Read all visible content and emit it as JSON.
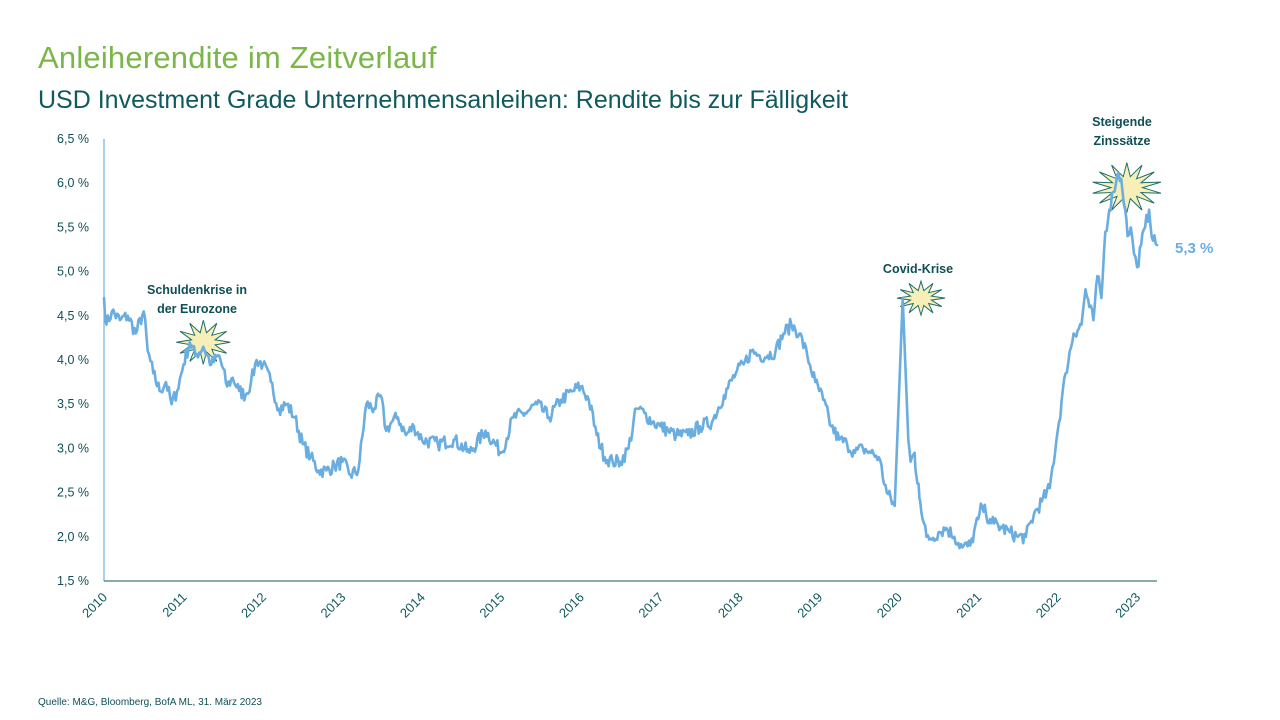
{
  "title": "Anleiherendite  im Zeitverlauf",
  "subtitle": "USD Investment Grade Unternehmensanleihen: Rendite bis zur Fälligkeit",
  "source": "Quelle: M&G, Bloomberg, BofA ML, 31. März 2023",
  "colors": {
    "title": "#7ab648",
    "subtitle": "#0f5a5e",
    "line": "#6aade0",
    "burst_fill": "#f8efb8",
    "burst_stroke": "#1f6e6a"
  },
  "chart_data": {
    "type": "line",
    "title": "USD Investment Grade Unternehmensanleihen: Rendite bis zur Fälligkeit",
    "xlabel": "",
    "ylabel": "",
    "xlim": [
      2010.0,
      2023.25
    ],
    "ylim": [
      1.5,
      6.5
    ],
    "y_ticks": [
      1.5,
      2.0,
      2.5,
      3.0,
      3.5,
      4.0,
      4.5,
      5.0,
      5.5,
      6.0,
      6.5
    ],
    "y_tick_labels": [
      "1,5 %",
      "2,0 %",
      "2,5 %",
      "3,0 %",
      "3,5 %",
      "4,0 %",
      "4,5 %",
      "5,0 %",
      "5,5 %",
      "6,0 %",
      "6,5 %"
    ],
    "x_ticks": [
      2010,
      2011,
      2012,
      2013,
      2014,
      2015,
      2016,
      2017,
      2018,
      2019,
      2020,
      2021,
      2022,
      2023
    ],
    "x_tick_labels": [
      "2010",
      "2011",
      "2012",
      "2013",
      "2014",
      "2015",
      "2016",
      "2017",
      "2018",
      "2019",
      "2020",
      "2021",
      "2022",
      "2023"
    ],
    "series": [
      {
        "name": "Rendite bis zur Fälligkeit",
        "x": [
          2010.0,
          2010.03,
          2010.1,
          2010.2,
          2010.3,
          2010.4,
          2010.5,
          2010.55,
          2010.62,
          2010.7,
          2010.78,
          2010.85,
          2010.92,
          2011.0,
          2011.08,
          2011.15,
          2011.25,
          2011.35,
          2011.45,
          2011.55,
          2011.62,
          2011.7,
          2011.78,
          2011.85,
          2011.92,
          2012.0,
          2012.1,
          2012.2,
          2012.3,
          2012.4,
          2012.5,
          2012.6,
          2012.7,
          2012.8,
          2012.9,
          2013.0,
          2013.1,
          2013.2,
          2013.3,
          2013.4,
          2013.48,
          2013.55,
          2013.62,
          2013.7,
          2013.8,
          2013.9,
          2014.0,
          2014.2,
          2014.4,
          2014.6,
          2014.8,
          2015.0,
          2015.15,
          2015.3,
          2015.45,
          2015.6,
          2015.75,
          2015.9,
          2016.0,
          2016.1,
          2016.2,
          2016.3,
          2016.4,
          2016.5,
          2016.6,
          2016.7,
          2016.8,
          2016.9,
          2017.0,
          2017.1,
          2017.2,
          2017.35,
          2017.5,
          2017.65,
          2017.8,
          2017.95,
          2018.05,
          2018.15,
          2018.25,
          2018.35,
          2018.45,
          2018.55,
          2018.65,
          2018.75,
          2018.85,
          2018.95,
          2019.05,
          2019.15,
          2019.25,
          2019.35,
          2019.45,
          2019.55,
          2019.65,
          2019.75,
          2019.85,
          2019.95,
          2020.05,
          2020.12,
          2020.15,
          2020.2,
          2020.22,
          2020.25,
          2020.27,
          2020.3,
          2020.35,
          2020.4,
          2020.5,
          2020.6,
          2020.7,
          2020.8,
          2020.9,
          2021.0,
          2021.05,
          2021.1,
          2021.15,
          2021.2,
          2021.3,
          2021.4,
          2021.5,
          2021.6,
          2021.7,
          2021.8,
          2021.9,
          2022.0,
          2022.1,
          2022.2,
          2022.3,
          2022.35,
          2022.4,
          2022.45,
          2022.5,
          2022.55,
          2022.6,
          2022.65,
          2022.7,
          2022.75,
          2022.8,
          2022.85,
          2022.88,
          2022.92,
          2022.96,
          2023.0,
          2023.05,
          2023.1,
          2023.15,
          2023.2,
          2023.25
        ],
        "values": [
          4.7,
          4.4,
          4.55,
          4.45,
          4.5,
          4.3,
          4.55,
          4.1,
          3.85,
          3.65,
          3.75,
          3.5,
          3.65,
          3.95,
          4.2,
          4.05,
          4.15,
          3.95,
          4.05,
          3.7,
          3.8,
          3.65,
          3.6,
          3.75,
          4.0,
          3.95,
          3.75,
          3.45,
          3.5,
          3.35,
          3.05,
          2.9,
          2.75,
          2.75,
          2.8,
          2.85,
          2.7,
          2.75,
          3.5,
          3.45,
          3.6,
          3.2,
          3.3,
          3.35,
          3.15,
          3.25,
          3.1,
          3.05,
          3.1,
          2.95,
          3.2,
          2.95,
          3.35,
          3.4,
          3.5,
          3.35,
          3.55,
          3.65,
          3.7,
          3.55,
          3.15,
          2.9,
          2.85,
          2.85,
          3.0,
          3.45,
          3.4,
          3.3,
          3.25,
          3.2,
          3.15,
          3.15,
          3.25,
          3.3,
          3.6,
          3.85,
          3.95,
          4.1,
          4.05,
          4.05,
          4.1,
          4.3,
          4.4,
          4.3,
          4.05,
          3.75,
          3.55,
          3.25,
          3.1,
          3.05,
          2.95,
          3.0,
          2.95,
          2.9,
          2.5,
          2.35,
          4.7,
          3.1,
          2.85,
          2.95,
          2.7,
          2.6,
          2.4,
          2.2,
          2.0,
          1.98,
          2.05,
          2.1,
          2.0,
          1.88,
          1.9,
          2.2,
          2.35,
          2.25,
          2.2,
          2.15,
          2.1,
          2.05,
          2.0,
          2.0,
          2.25,
          2.4,
          2.55,
          3.2,
          3.85,
          4.3,
          4.4,
          4.8,
          4.6,
          4.45,
          4.95,
          4.7,
          5.45,
          5.7,
          5.9,
          6.1,
          6.05,
          5.7,
          5.4,
          5.5,
          5.2,
          5.05,
          5.3,
          5.5,
          5.7,
          5.35,
          5.3
        ],
        "end_label": "5,3 %"
      }
    ],
    "annotations": [
      {
        "id": "eurozone",
        "lines": [
          "Schuldenkrise in",
          "der Eurozone"
        ],
        "x": 2011.25,
        "y": 4.2
      },
      {
        "id": "covid",
        "lines": [
          "Covid-Krise"
        ],
        "x": 2020.28,
        "y": 4.7
      },
      {
        "id": "rates",
        "lines": [
          "Steigende",
          "Zinssätze"
        ],
        "x": 2022.87,
        "y": 5.95
      }
    ]
  }
}
